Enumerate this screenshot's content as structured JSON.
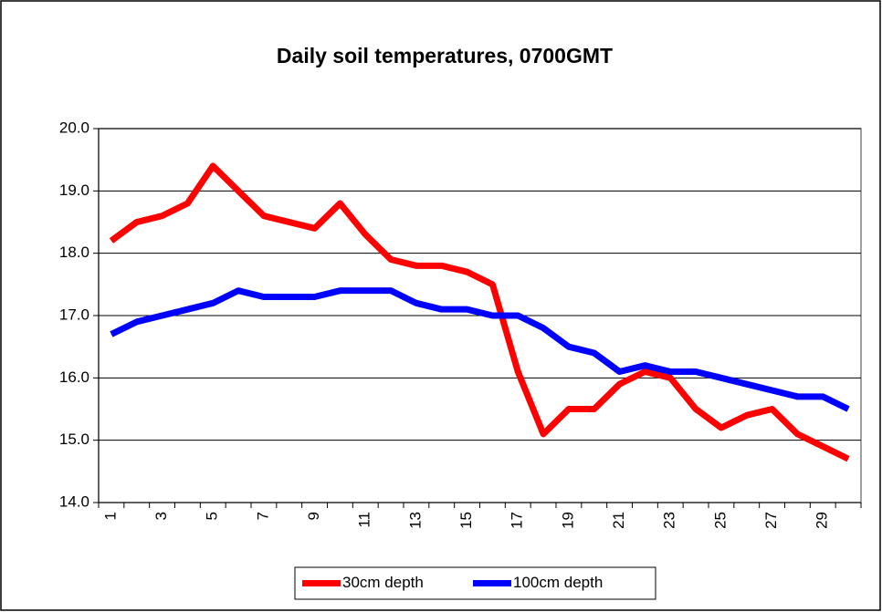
{
  "chart_data": {
    "type": "line",
    "title": "Daily soil temperatures, 0700GMT",
    "categories": [
      "1",
      null,
      "3",
      null,
      "5",
      null,
      "7",
      null,
      "9",
      null,
      "11",
      null,
      "13",
      null,
      "15",
      null,
      "17",
      null,
      "19",
      null,
      "21",
      null,
      "23",
      null,
      "25",
      null,
      "27",
      null,
      "29",
      null
    ],
    "series": [
      {
        "name": "30cm depth",
        "color": "#ff0000",
        "values": [
          18.2,
          18.5,
          18.6,
          18.8,
          19.4,
          19.0,
          18.6,
          18.5,
          18.4,
          18.8,
          18.3,
          17.9,
          17.8,
          17.8,
          17.7,
          17.5,
          16.1,
          15.1,
          15.5,
          15.5,
          15.9,
          16.1,
          16.0,
          15.5,
          15.2,
          15.4,
          15.5,
          15.1,
          14.9,
          14.7
        ]
      },
      {
        "name": "100cm depth",
        "color": "#0000ff",
        "values": [
          16.7,
          16.9,
          17.0,
          17.1,
          17.2,
          17.4,
          17.3,
          17.3,
          17.3,
          17.4,
          17.4,
          17.4,
          17.2,
          17.1,
          17.1,
          17.0,
          17.0,
          16.8,
          16.5,
          16.4,
          16.1,
          16.2,
          16.1,
          16.1,
          16.0,
          15.9,
          15.8,
          15.7,
          15.7,
          15.5
        ]
      }
    ],
    "ylim": [
      14,
      20
    ],
    "yticks": [
      {
        "value": 14,
        "label": "14.0"
      },
      {
        "value": 15,
        "label": "15.0"
      },
      {
        "value": 16,
        "label": "16.0"
      },
      {
        "value": 17,
        "label": "17.0"
      },
      {
        "value": 18,
        "label": "18.0"
      },
      {
        "value": 19,
        "label": "19.0"
      },
      {
        "value": 20,
        "label": "20.0"
      }
    ],
    "grid": true,
    "legend": "bottom"
  }
}
